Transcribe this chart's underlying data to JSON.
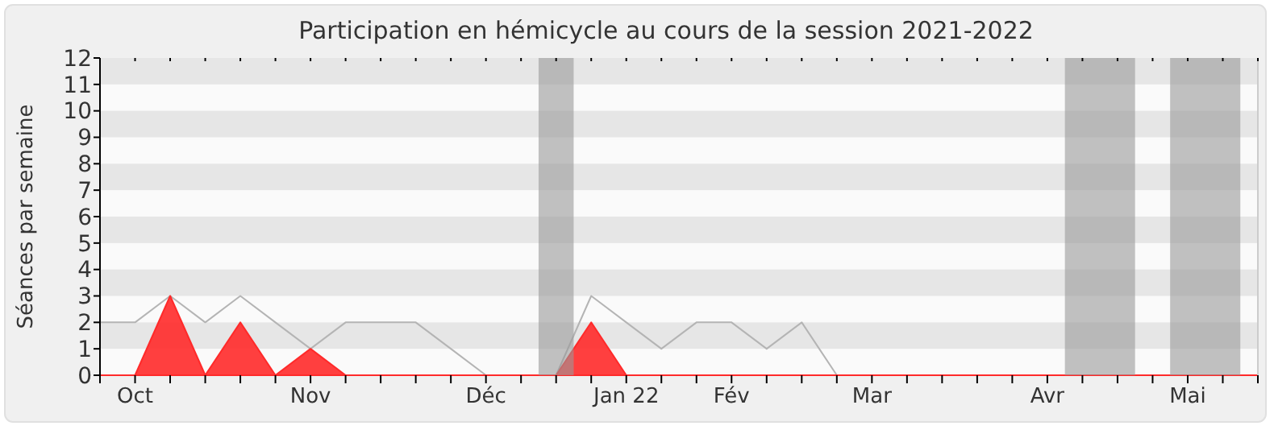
{
  "chart_data": {
    "type": "area",
    "title": "Participation en hémicycle au cours de la session 2021-2022",
    "ylabel": "Séances par semaine",
    "categories": [
      null,
      "Oct",
      null,
      null,
      null,
      null,
      "Nov",
      null,
      null,
      null,
      null,
      "Déc",
      null,
      null,
      null,
      "Jan 22",
      null,
      null,
      "Fév",
      null,
      null,
      null,
      "Mar",
      null,
      null,
      null,
      null,
      "Avr",
      null,
      null,
      null,
      "Mai",
      null,
      null
    ],
    "series": [
      {
        "type": "line",
        "color": "#b4b4b4",
        "values": [
          2,
          2,
          3,
          2,
          3,
          2,
          1,
          2,
          2,
          2,
          1,
          0,
          null,
          0,
          3,
          2,
          1,
          2,
          2,
          1,
          2,
          0,
          null,
          null,
          null,
          null,
          null,
          null,
          null,
          null,
          null,
          null,
          null,
          null
        ]
      },
      {
        "color": "#ff2a2a",
        "values": [
          0,
          0,
          3,
          0,
          2,
          0,
          1,
          0,
          0,
          0,
          0,
          0,
          0,
          0,
          2,
          0,
          0,
          0,
          0,
          0,
          0,
          0,
          0,
          0,
          0,
          0,
          0,
          0,
          0,
          0,
          0,
          0,
          0,
          0
        ]
      }
    ],
    "ylim": [
      0,
      12
    ],
    "yticks": [
      0,
      1,
      2,
      3,
      4,
      5,
      6,
      7,
      8,
      9,
      10,
      11,
      12
    ],
    "bands": [
      {
        "axis": "y",
        "from": 1,
        "to": 2,
        "color": "#e6e6e6"
      },
      {
        "axis": "y",
        "from": 3,
        "to": 4,
        "color": "#e6e6e6"
      },
      {
        "axis": "y",
        "from": 5,
        "to": 6,
        "color": "#e6e6e6"
      },
      {
        "axis": "y",
        "from": 7,
        "to": 8,
        "color": "#e6e6e6"
      },
      {
        "axis": "y",
        "from": 9,
        "to": 10,
        "color": "#e6e6e6"
      },
      {
        "axis": "y",
        "from": 11,
        "to": 12,
        "color": "#e6e6e6"
      }
    ]
  }
}
